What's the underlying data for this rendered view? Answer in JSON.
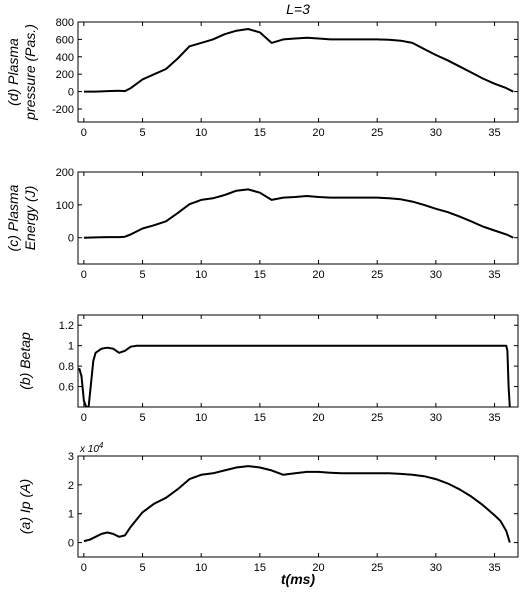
{
  "figure": {
    "title": "L=3",
    "xlabel": "t(ms)"
  },
  "chart_data": [
    {
      "type": "line",
      "ylabel_lines": [
        "(d) Plasma",
        "pressure (Pas.)"
      ],
      "xlim": [
        -0.5,
        37
      ],
      "ylim": [
        -350,
        800
      ],
      "xticks": [
        0,
        5,
        10,
        15,
        20,
        25,
        30,
        35
      ],
      "yticks": [
        -200,
        0,
        200,
        400,
        600,
        800
      ],
      "ytick_labels": [
        "-200",
        "0",
        "200",
        "400",
        "600",
        "800"
      ],
      "multiplier": "",
      "series": [
        {
          "x": [
            0,
            1,
            2,
            3,
            3.5,
            4,
            5,
            6,
            7,
            8,
            9,
            10,
            11,
            12,
            13,
            14,
            15,
            16,
            17,
            18,
            19,
            20,
            21,
            22,
            23,
            24,
            25,
            26,
            27,
            28,
            29,
            30,
            31,
            32,
            33,
            34,
            35,
            36,
            36.6
          ],
          "y": [
            0,
            0,
            5,
            10,
            5,
            40,
            140,
            200,
            260,
            380,
            520,
            560,
            600,
            660,
            700,
            720,
            680,
            560,
            600,
            610,
            620,
            610,
            600,
            600,
            600,
            600,
            600,
            595,
            585,
            560,
            490,
            420,
            360,
            290,
            220,
            150,
            90,
            40,
            0
          ]
        }
      ]
    },
    {
      "type": "line",
      "ylabel_lines": [
        "(c) Plasma",
        "Energy (J)"
      ],
      "xlim": [
        -0.5,
        37
      ],
      "ylim": [
        -80,
        200
      ],
      "xticks": [
        0,
        5,
        10,
        15,
        20,
        25,
        30,
        35
      ],
      "yticks": [
        0,
        100,
        200
      ],
      "ytick_labels": [
        "0",
        "100",
        "200"
      ],
      "multiplier": "",
      "series": [
        {
          "x": [
            0,
            1,
            2,
            3,
            3.5,
            4,
            5,
            6,
            7,
            8,
            9,
            10,
            11,
            12,
            13,
            14,
            15,
            16,
            17,
            18,
            19,
            20,
            21,
            22,
            23,
            24,
            25,
            26,
            27,
            28,
            29,
            30,
            31,
            32,
            33,
            34,
            35,
            36,
            36.6
          ],
          "y": [
            0,
            1,
            2,
            2,
            3,
            10,
            28,
            38,
            50,
            75,
            102,
            115,
            120,
            130,
            143,
            147,
            137,
            115,
            122,
            124,
            127,
            124,
            122,
            122,
            122,
            122,
            122,
            120,
            117,
            110,
            100,
            88,
            78,
            65,
            50,
            34,
            22,
            10,
            0
          ]
        }
      ]
    },
    {
      "type": "line",
      "ylabel_lines": [
        "(b) Betap"
      ],
      "xlim": [
        -0.5,
        37
      ],
      "ylim": [
        0.4,
        1.3
      ],
      "xticks": [
        0,
        5,
        10,
        15,
        20,
        25,
        30,
        35
      ],
      "yticks": [
        0.6,
        0.8,
        1,
        1.2
      ],
      "ytick_labels": [
        "0.6",
        "0.8",
        "1",
        "1.2"
      ],
      "multiplier": "",
      "series": [
        {
          "x": [
            -0.4,
            -0.2,
            0,
            0.2,
            0.4,
            0.6,
            0.8,
            1,
            1.5,
            2,
            2.5,
            3,
            3.5,
            4,
            4.5,
            5,
            10,
            15,
            20,
            25,
            30,
            35,
            36,
            36.1,
            36.2,
            36.3
          ],
          "y": [
            0.78,
            0.7,
            0.46,
            0.4,
            0.4,
            0.62,
            0.85,
            0.93,
            0.97,
            0.98,
            0.97,
            0.93,
            0.95,
            0.99,
            1,
            1,
            1,
            1,
            1,
            1,
            1,
            1,
            1,
            0.95,
            0.6,
            0.4
          ]
        }
      ]
    },
    {
      "type": "line",
      "ylabel_lines": [
        "(a) Ip (A)"
      ],
      "xlim": [
        -0.5,
        37
      ],
      "ylim": [
        -0.5,
        3
      ],
      "xticks": [
        0,
        5,
        10,
        15,
        20,
        25,
        30,
        35
      ],
      "yticks": [
        0,
        1,
        2,
        3
      ],
      "ytick_labels": [
        "0",
        "1",
        "2",
        "3"
      ],
      "multiplier": "x 10^4",
      "multiplier_base": "x 10",
      "multiplier_exp": "4",
      "series": [
        {
          "x": [
            0,
            0.5,
            1,
            1.5,
            2,
            2.5,
            3,
            3.5,
            4,
            5,
            6,
            7,
            8,
            9,
            10,
            11,
            12,
            13,
            14,
            15,
            16,
            17,
            18,
            19,
            20,
            21,
            22,
            23,
            24,
            25,
            26,
            27,
            28,
            29,
            30,
            31,
            32,
            33,
            34,
            35,
            35.5,
            36,
            36.3
          ],
          "y": [
            0.05,
            0.1,
            0.2,
            0.3,
            0.35,
            0.3,
            0.2,
            0.25,
            0.55,
            1.05,
            1.35,
            1.55,
            1.85,
            2.2,
            2.35,
            2.4,
            2.5,
            2.6,
            2.65,
            2.6,
            2.5,
            2.35,
            2.4,
            2.45,
            2.45,
            2.42,
            2.4,
            2.4,
            2.4,
            2.4,
            2.4,
            2.38,
            2.35,
            2.3,
            2.2,
            2.05,
            1.85,
            1.6,
            1.3,
            0.95,
            0.75,
            0.4,
            0
          ]
        }
      ]
    }
  ]
}
